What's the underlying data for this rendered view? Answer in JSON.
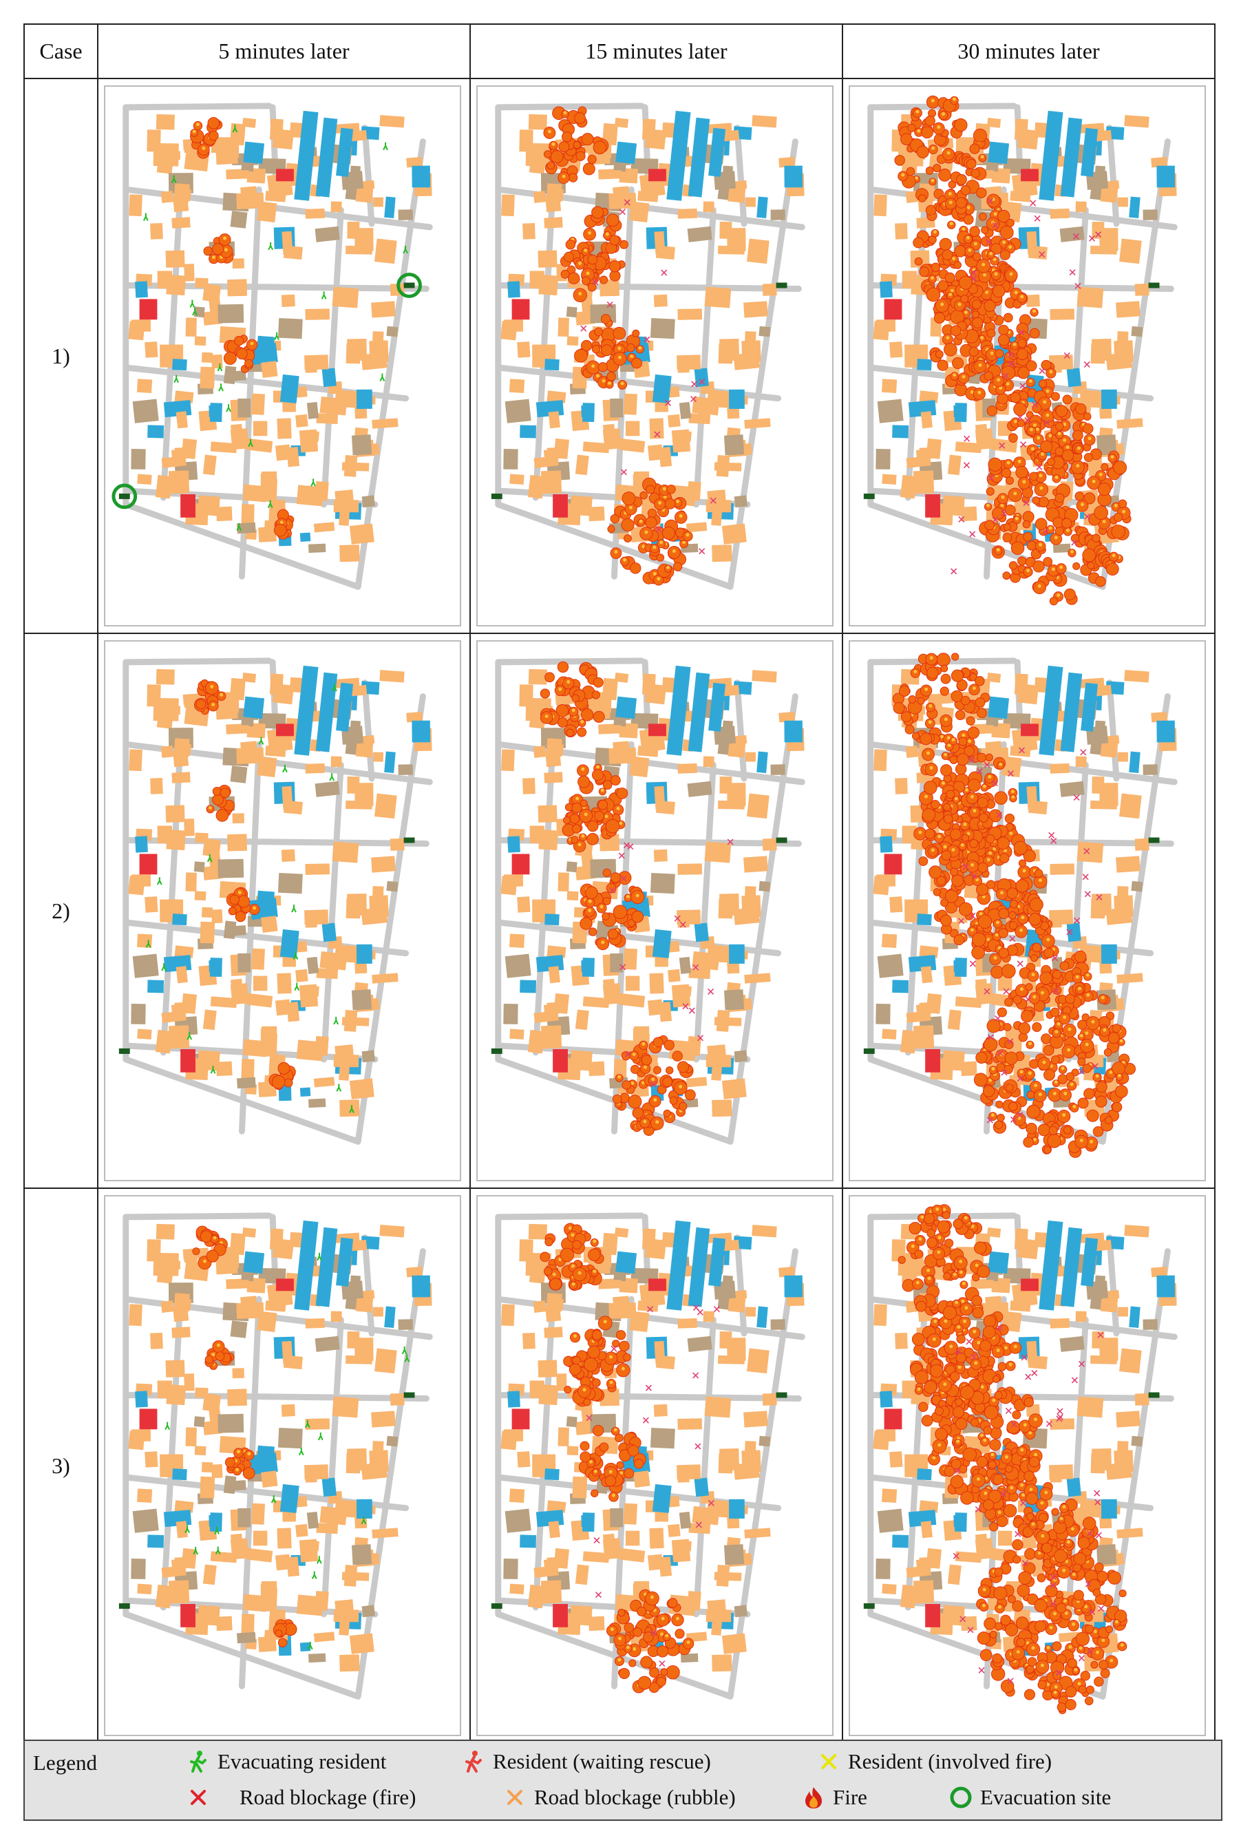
{
  "table": {
    "header": {
      "case": "Case",
      "col1": "5 minutes later",
      "col2": "15 minutes later",
      "col3": "30 minutes later"
    },
    "rows": [
      {
        "case": "1)"
      },
      {
        "case": "2)"
      },
      {
        "case": "3)"
      }
    ]
  },
  "legend": {
    "title": "Legend",
    "items": [
      {
        "label": "Evacuating resident",
        "icon": "evacuating-resident-icon",
        "color": "#22bb22"
      },
      {
        "label": "Resident (waiting rescue)",
        "icon": "waiting-resident-icon",
        "color": "#e8413a"
      },
      {
        "label": "Resident (involved fire)",
        "icon": "involved-fire-icon",
        "color": "#e6e600"
      },
      {
        "label": "Road blockage (fire)",
        "icon": "fire-blockage-icon",
        "color": "#e0202a"
      },
      {
        "label": "Road blockage (rubble)",
        "icon": "rubble-blockage-icon",
        "color": "#f5a050"
      },
      {
        "label": "Fire",
        "icon": "fire-icon",
        "color": "#e8501a"
      },
      {
        "label": "Evacuation site",
        "icon": "evacuation-site-icon",
        "color": "#1a9a2a"
      }
    ]
  },
  "colors": {
    "building_wood": "#f9b46e",
    "building_collapsed": "#b8a080",
    "building_public": "#2fa8d8",
    "building_red": "#e8323a",
    "road": "#c9c9c9",
    "fire": "#f26a10"
  }
}
